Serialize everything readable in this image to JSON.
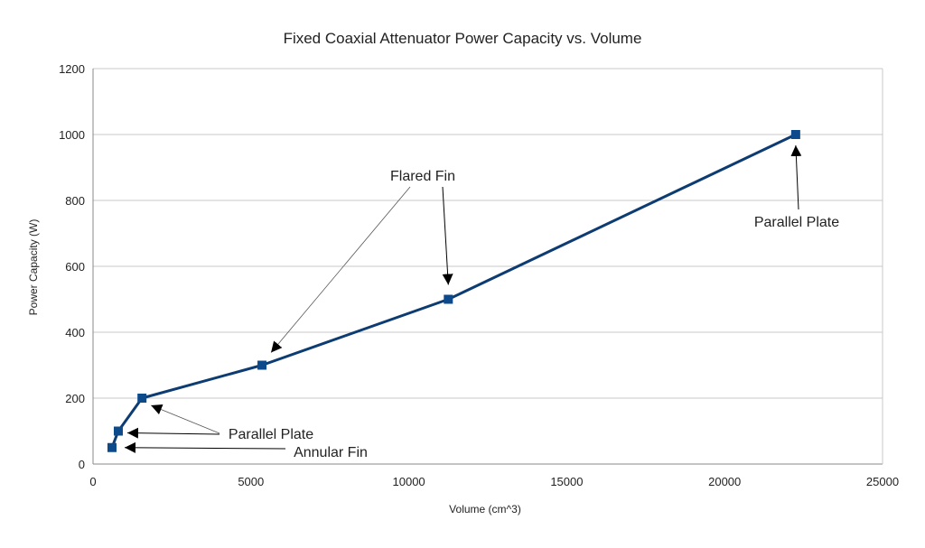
{
  "chart_data": {
    "type": "line",
    "title": "Fixed Coaxial Attenuator Power Capacity vs. Volume",
    "xlabel": "Volume (cm^3)",
    "ylabel": "Power Capacity (W)",
    "xlim": [
      0,
      25000
    ],
    "ylim": [
      0,
      1200
    ],
    "xticks": [
      0,
      5000,
      10000,
      15000,
      20000,
      25000
    ],
    "yticks": [
      0,
      200,
      400,
      600,
      800,
      1000,
      1200
    ],
    "grid": "horizontal",
    "legend": "none",
    "series": [
      {
        "points": [
          {
            "x": 600,
            "y": 50
          },
          {
            "x": 800,
            "y": 100
          },
          {
            "x": 1550,
            "y": 200
          },
          {
            "x": 5350,
            "y": 300
          },
          {
            "x": 11250,
            "y": 500
          },
          {
            "x": 22250,
            "y": 1000
          }
        ]
      }
    ],
    "annotations": [
      {
        "text": "Parallel Plate",
        "target_x": 22250,
        "target_y": 1000
      },
      {
        "text": "Flared Fin",
        "targets": [
          {
            "x": 5350,
            "y": 300
          },
          {
            "x": 11250,
            "y": 500
          }
        ]
      },
      {
        "text": "Parallel Plate",
        "targets": [
          {
            "x": 1550,
            "y": 200
          },
          {
            "x": 800,
            "y": 100
          }
        ]
      },
      {
        "text": "Annular Fin",
        "target_x": 600,
        "target_y": 50
      }
    ]
  },
  "colors": {
    "line": "#0d3c73",
    "marker": "#0d4a8c",
    "grid": "#c8c8c8",
    "axis": "#888888",
    "arrow": "#000000"
  }
}
